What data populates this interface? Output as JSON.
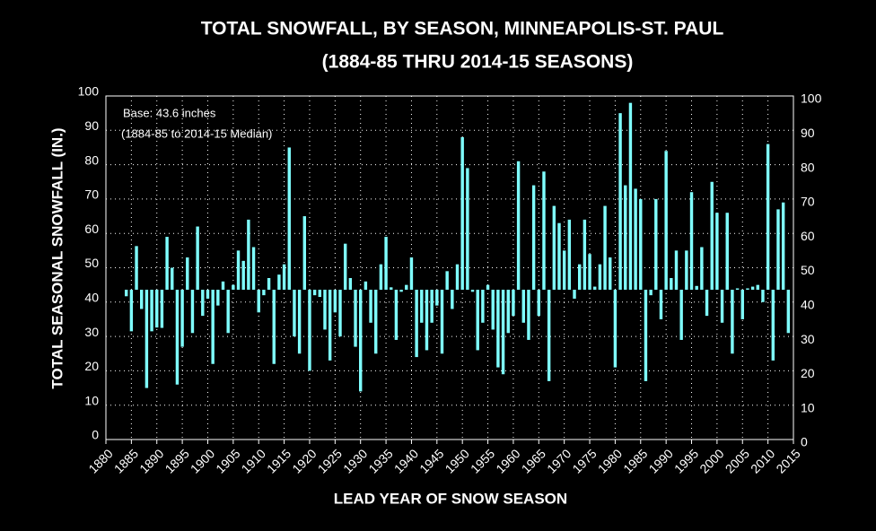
{
  "chart_data": {
    "type": "bar",
    "title": "TOTAL SNOWFALL, BY SEASON, MINNEAPOLIS-ST. PAUL",
    "subtitle": "(1884-85 THRU 2014-15 SEASONS)",
    "y_label": "TOTAL SEASONAL SNOWFALL (IN.)",
    "x_label": "LEAD YEAR OF SNOW SEASON",
    "annotations": [
      "Base: 43.6  inches",
      "(1884-85 to 2014-15 Median)"
    ],
    "base": 43.6,
    "color": "#7fffff",
    "grid": true,
    "xlim": [
      1880,
      2015
    ],
    "xticks": [
      1880,
      1885,
      1890,
      1895,
      1900,
      1905,
      1910,
      1915,
      1920,
      1925,
      1930,
      1935,
      1940,
      1945,
      1950,
      1955,
      1960,
      1965,
      1970,
      1975,
      1980,
      1985,
      1990,
      1995,
      2000,
      2005,
      2010,
      2015
    ],
    "ylim": [
      0,
      100
    ],
    "yticks": [
      0,
      10,
      20,
      30,
      40,
      50,
      60,
      70,
      80,
      90,
      100
    ],
    "x": [
      1884,
      1885,
      1886,
      1887,
      1888,
      1889,
      1890,
      1891,
      1892,
      1893,
      1894,
      1895,
      1896,
      1897,
      1898,
      1899,
      1900,
      1901,
      1902,
      1903,
      1904,
      1905,
      1906,
      1907,
      1908,
      1909,
      1910,
      1911,
      1912,
      1913,
      1914,
      1915,
      1916,
      1917,
      1918,
      1919,
      1920,
      1921,
      1922,
      1923,
      1924,
      1925,
      1926,
      1927,
      1928,
      1929,
      1930,
      1931,
      1932,
      1933,
      1934,
      1935,
      1936,
      1937,
      1938,
      1939,
      1940,
      1941,
      1942,
      1943,
      1944,
      1945,
      1946,
      1947,
      1948,
      1949,
      1950,
      1951,
      1952,
      1953,
      1954,
      1955,
      1956,
      1957,
      1958,
      1959,
      1960,
      1961,
      1962,
      1963,
      1964,
      1965,
      1966,
      1967,
      1968,
      1969,
      1970,
      1971,
      1972,
      1973,
      1974,
      1975,
      1976,
      1977,
      1978,
      1979,
      1980,
      1981,
      1982,
      1983,
      1984,
      1985,
      1986,
      1987,
      1988,
      1989,
      1990,
      1991,
      1992,
      1993,
      1994,
      1995,
      1996,
      1997,
      1998,
      1999,
      2000,
      2001,
      2002,
      2003,
      2004,
      2005,
      2006,
      2007,
      2008,
      2009,
      2010,
      2011,
      2012,
      2013,
      2014
    ],
    "values": [
      41.7,
      31.5,
      56.3,
      38,
      15,
      31.5,
      32.6,
      32.5,
      59,
      50,
      16,
      27,
      53,
      31,
      62,
      36,
      41,
      22,
      39,
      46,
      31,
      45,
      55,
      52,
      64,
      56,
      37,
      42,
      47,
      22,
      48,
      51,
      85,
      30,
      25,
      65,
      20,
      42,
      41.5,
      32,
      23,
      37,
      30,
      57,
      47,
      27,
      14,
      46,
      34,
      25,
      51,
      59,
      44.3,
      29,
      43,
      45,
      53,
      24,
      34,
      26,
      34,
      39,
      25,
      49,
      38,
      51,
      88,
      79,
      43,
      26,
      34,
      45,
      32,
      21,
      19,
      31,
      36,
      81,
      34,
      29,
      74,
      36,
      78,
      17,
      68,
      63,
      55,
      64,
      41,
      51,
      64,
      54,
      44.5,
      51,
      68,
      53,
      21,
      95,
      74,
      98,
      73,
      70,
      17,
      42,
      70,
      35,
      84,
      47,
      55,
      29,
      55,
      72,
      44.7,
      56,
      36,
      75,
      66,
      34,
      66,
      25,
      44,
      35,
      44,
      44.5,
      45,
      40,
      86,
      23,
      67,
      69,
      31
    ]
  }
}
